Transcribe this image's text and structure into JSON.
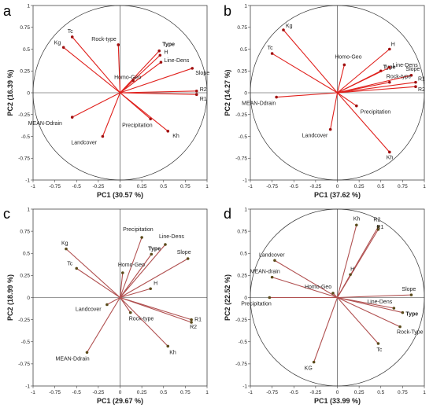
{
  "chart_data": [
    {
      "type": "scatter",
      "panel_label": "a",
      "xlabel": "PC1 (30.57 %)",
      "ylabel": "PC2 (16.39 %)",
      "xlim": [
        -1,
        1
      ],
      "ylim": [
        -1,
        1
      ],
      "xticks": [
        "-1",
        "-0.75",
        "-0.5",
        "-0.25",
        "0",
        "0.25",
        "0.5",
        "0.75",
        "1"
      ],
      "yticks": [
        "1",
        "0.75",
        "0.5",
        "0.25",
        "0",
        "-0.25",
        "-0.5",
        "-0.75",
        "-1"
      ],
      "line_color": "#e0201c",
      "point_color": "#a01010",
      "unit_circle": true,
      "points": [
        {
          "label": "Tc",
          "x": -0.55,
          "y": 0.64
        },
        {
          "label": "Kg",
          "x": -0.65,
          "y": 0.52
        },
        {
          "label": "Rock-type",
          "x": -0.02,
          "y": 0.55
        },
        {
          "label": "Type",
          "x": 0.45,
          "y": 0.48
        },
        {
          "label": "H",
          "x": 0.46,
          "y": 0.43
        },
        {
          "label": "Line-Dens",
          "x": 0.47,
          "y": 0.35
        },
        {
          "label": "Homo-Geo",
          "x": 0.15,
          "y": 0.14
        },
        {
          "label": "Slope",
          "x": 0.83,
          "y": 0.28
        },
        {
          "label": "R2",
          "x": 0.88,
          "y": 0.02
        },
        {
          "label": "R1",
          "x": 0.88,
          "y": -0.02
        },
        {
          "label": "MEAN-Ddrain",
          "x": -0.55,
          "y": -0.28
        },
        {
          "label": "Landcover",
          "x": -0.2,
          "y": -0.5
        },
        {
          "label": "Precipitation",
          "x": 0.35,
          "y": -0.3
        },
        {
          "label": "Kh",
          "x": 0.55,
          "y": -0.44
        }
      ]
    },
    {
      "type": "scatter",
      "panel_label": "b",
      "xlabel": "PC1 (37.62 %)",
      "ylabel": "PC2 (14.27 %)",
      "xlim": [
        -1,
        1
      ],
      "ylim": [
        -1,
        1
      ],
      "xticks": [
        "-1",
        "-0.75",
        "-0.5",
        "-0.25",
        "0",
        "0.25",
        "0.5",
        "0.75",
        "1"
      ],
      "yticks": [
        "1",
        "0.75",
        "0.5",
        "0.25",
        "0",
        "-0.25",
        "-0.5",
        "-0.75",
        "-1"
      ],
      "line_color": "#e0201c",
      "point_color": "#a01010",
      "unit_circle": true,
      "points": [
        {
          "label": "Kg",
          "x": -0.62,
          "y": 0.72
        },
        {
          "label": "Tc",
          "x": -0.75,
          "y": 0.45
        },
        {
          "label": "H",
          "x": 0.6,
          "y": 0.5
        },
        {
          "label": "Homo-Geo",
          "x": 0.08,
          "y": 0.32
        },
        {
          "label": "Type",
          "x": 0.5,
          "y": 0.25
        },
        {
          "label": "Line-Dens",
          "x": 0.6,
          "y": 0.29
        },
        {
          "label": "Slope",
          "x": 0.85,
          "y": 0.2
        },
        {
          "label": "Rock-type",
          "x": 0.6,
          "y": 0.12
        },
        {
          "label": "R1",
          "x": 0.9,
          "y": 0.12
        },
        {
          "label": "R2",
          "x": 0.9,
          "y": 0.07
        },
        {
          "label": "MEAN-Ddrain",
          "x": -0.7,
          "y": -0.05
        },
        {
          "label": "Precipitation",
          "x": 0.22,
          "y": -0.15
        },
        {
          "label": "Landcover",
          "x": -0.08,
          "y": -0.42
        },
        {
          "label": "Kh",
          "x": 0.6,
          "y": -0.68
        }
      ]
    },
    {
      "type": "scatter",
      "panel_label": "c",
      "xlabel": "PC1 (29.67 %)",
      "ylabel": "PC2 (18.99 %)",
      "xlim": [
        -1,
        1
      ],
      "ylim": [
        -1,
        1
      ],
      "xticks": [
        "-1",
        "-0.75",
        "-0.5",
        "-0.25",
        "0",
        "0.25",
        "0.5",
        "0.75",
        "1"
      ],
      "yticks": [
        "1",
        "0.75",
        "0.5",
        "0.25",
        "0",
        "-0.25",
        "-0.5",
        "-0.75",
        "-1"
      ],
      "line_color": "#b05050",
      "point_color": "#5a4a1a",
      "unit_circle": false,
      "points": [
        {
          "label": "Kg",
          "x": -0.62,
          "y": 0.55
        },
        {
          "label": "Tc",
          "x": -0.5,
          "y": 0.33
        },
        {
          "label": "Precipitation",
          "x": 0.25,
          "y": 0.68
        },
        {
          "label": "Line-Dens",
          "x": 0.52,
          "y": 0.6
        },
        {
          "label": "Type",
          "x": 0.36,
          "y": 0.49
        },
        {
          "label": "Slope",
          "x": 0.78,
          "y": 0.44
        },
        {
          "label": "Homo-Geo",
          "x": 0.03,
          "y": 0.28
        },
        {
          "label": "H",
          "x": 0.35,
          "y": 0.1
        },
        {
          "label": "Landcover",
          "x": -0.15,
          "y": -0.08
        },
        {
          "label": "Rock-type",
          "x": 0.12,
          "y": -0.17
        },
        {
          "label": "R1",
          "x": 0.82,
          "y": -0.25
        },
        {
          "label": "R2",
          "x": 0.82,
          "y": -0.28
        },
        {
          "label": "MEAN-Ddrain",
          "x": -0.38,
          "y": -0.62
        },
        {
          "label": "Kh",
          "x": 0.55,
          "y": -0.55
        }
      ]
    },
    {
      "type": "scatter",
      "panel_label": "d",
      "xlabel": "PC1 (33.99 %)",
      "ylabel": "PC2 (22.52 %)",
      "xlim": [
        -1,
        1
      ],
      "ylim": [
        -1,
        1
      ],
      "xticks": [
        "-1",
        "-0.75",
        "-0.5",
        "-0.25",
        "0",
        "0.25",
        "0.5",
        "0.75",
        "1"
      ],
      "yticks": [
        "1",
        "0.75",
        "0.5",
        "0.25",
        "0",
        "-0.25",
        "-0.5",
        "-0.75",
        "-1"
      ],
      "line_color": "#b05050",
      "point_color": "#5a4a1a",
      "unit_circle": true,
      "points": [
        {
          "label": "Kh",
          "x": 0.22,
          "y": 0.82
        },
        {
          "label": "R2",
          "x": 0.47,
          "y": 0.8
        },
        {
          "label": "R1",
          "x": 0.47,
          "y": 0.77
        },
        {
          "label": "Landcover",
          "x": -0.72,
          "y": 0.42
        },
        {
          "label": "MEAN-drain",
          "x": -0.75,
          "y": 0.23
        },
        {
          "label": "H",
          "x": 0.15,
          "y": 0.26
        },
        {
          "label": "Homo-Geo",
          "x": -0.05,
          "y": 0.05
        },
        {
          "label": "Slope",
          "x": 0.85,
          "y": 0.03
        },
        {
          "label": "Precipitation",
          "x": -0.78,
          "y": 0.0
        },
        {
          "label": "Line-Dens",
          "x": 0.65,
          "y": -0.12
        },
        {
          "label": "Type",
          "x": 0.75,
          "y": -0.17
        },
        {
          "label": "Rock-Type",
          "x": 0.72,
          "y": -0.33
        },
        {
          "label": "Tc",
          "x": 0.47,
          "y": -0.52
        },
        {
          "label": "KG",
          "x": -0.27,
          "y": -0.73
        }
      ]
    }
  ]
}
